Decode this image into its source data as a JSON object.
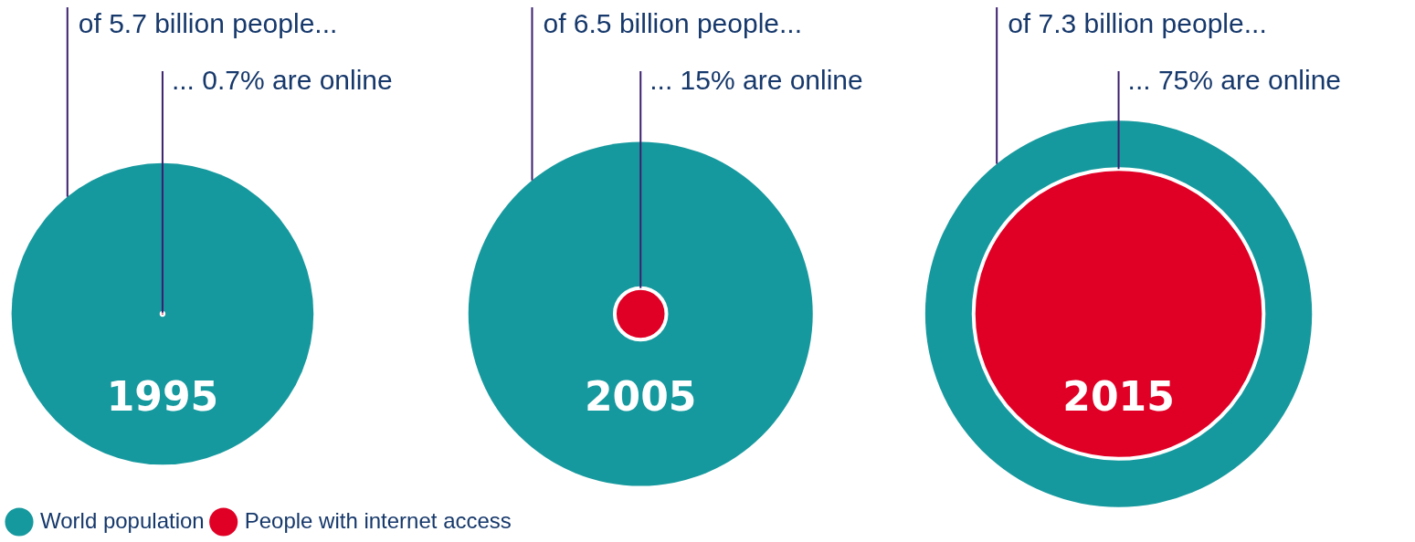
{
  "chart_data": {
    "type": "other",
    "categories": [
      "1995",
      "2005",
      "2015"
    ],
    "legend": "bottom left",
    "series": [
      {
        "name": "World population",
        "color": "#16999e",
        "values": [
          5700000000,
          6500000000,
          7300000000
        ],
        "value_labels": [
          "of 5.7 billion people...",
          "of 6.5 billion people...",
          "of 7.3 billion people..."
        ]
      },
      {
        "name": "People with internet access",
        "color": "#e00025",
        "values": [
          0.7,
          15,
          75
        ],
        "value_labels": [
          "... 0.7% are online",
          "... 15% are online",
          "... 75% are online"
        ]
      }
    ]
  }
}
